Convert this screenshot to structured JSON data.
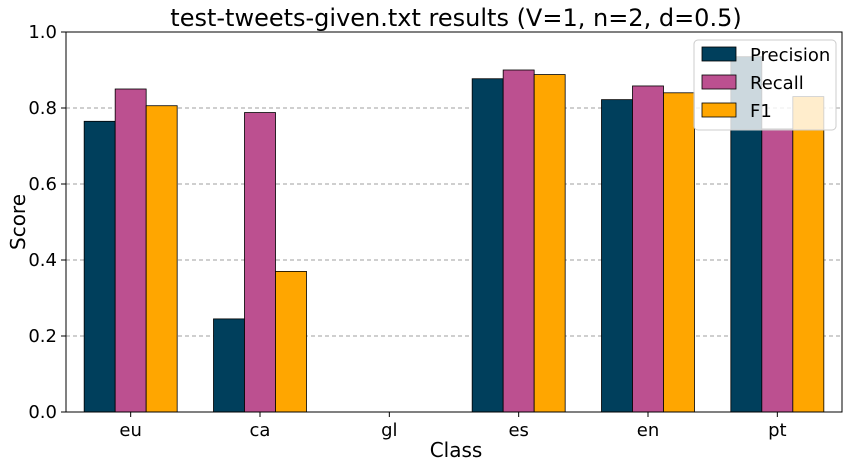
{
  "chart_data": {
    "type": "bar",
    "title": "test-tweets-given.txt results (V=1, n=2, d=0.5)",
    "xlabel": "Class",
    "ylabel": "Score",
    "ylim": [
      0,
      1.0
    ],
    "yticks": [
      "0.0",
      "0.2",
      "0.4",
      "0.6",
      "0.8",
      "1.0"
    ],
    "categories": [
      "eu",
      "ca",
      "gl",
      "es",
      "en",
      "pt"
    ],
    "series": [
      {
        "name": "Precision",
        "color": "#003f5c",
        "values": [
          0.765,
          0.245,
          0.0,
          0.877,
          0.822,
          0.935
        ]
      },
      {
        "name": "Recall",
        "color": "#bc5090",
        "values": [
          0.85,
          0.788,
          0.0,
          0.9,
          0.858,
          0.745
        ]
      },
      {
        "name": "F1",
        "color": "#ffa600",
        "values": [
          0.806,
          0.37,
          0.0,
          0.888,
          0.84,
          0.83
        ]
      }
    ],
    "grid": "horizontal dashed",
    "legend_position": "top-right"
  }
}
